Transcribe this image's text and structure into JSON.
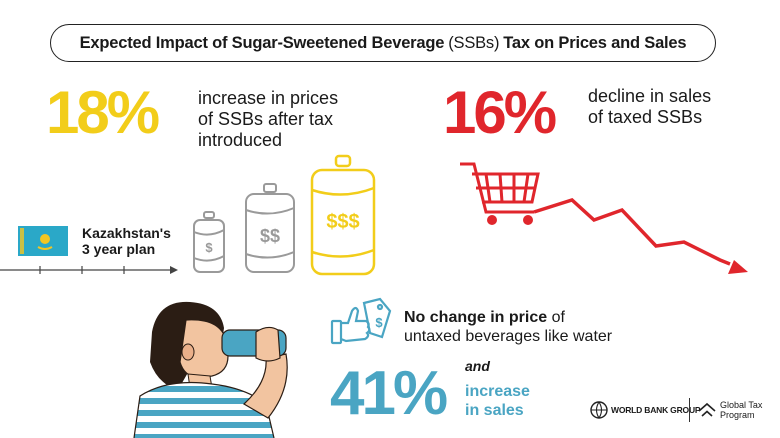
{
  "title": {
    "part1": "Expected Impact of Sugar-Sweetened Beverage",
    "part2": "(SSBs)",
    "part3": "Tax on Prices and Sales"
  },
  "stat_price": {
    "value": "18%",
    "line1": "increase in prices",
    "line2": "of SSBs after tax",
    "line3": "introduced",
    "color": "#f2cd1a"
  },
  "stat_sales": {
    "value": "16%",
    "line1": "decline in sales",
    "line2": "of taxed SSBs",
    "color": "#e0262c"
  },
  "plan": {
    "line1": "Kazakhstan's",
    "line2": "3 year plan"
  },
  "cans": {
    "small": "$",
    "medium": "$$",
    "large": "$$$"
  },
  "untaxed": {
    "bold": "No change in price",
    "rest1": " of",
    "line2": "untaxed beverages like water"
  },
  "stat_water": {
    "value": "41%",
    "and": "and",
    "line1": "increase",
    "line2": "in sales",
    "color": "#4aa5c3"
  },
  "logos": {
    "wbg": "WORLD BANK GROUP",
    "gtp1": "Global Tax",
    "gtp2": "Program"
  },
  "colors": {
    "yellow": "#f2cd1a",
    "red": "#e0262c",
    "blue": "#4aa5c3",
    "gray": "#9a9a9a"
  }
}
